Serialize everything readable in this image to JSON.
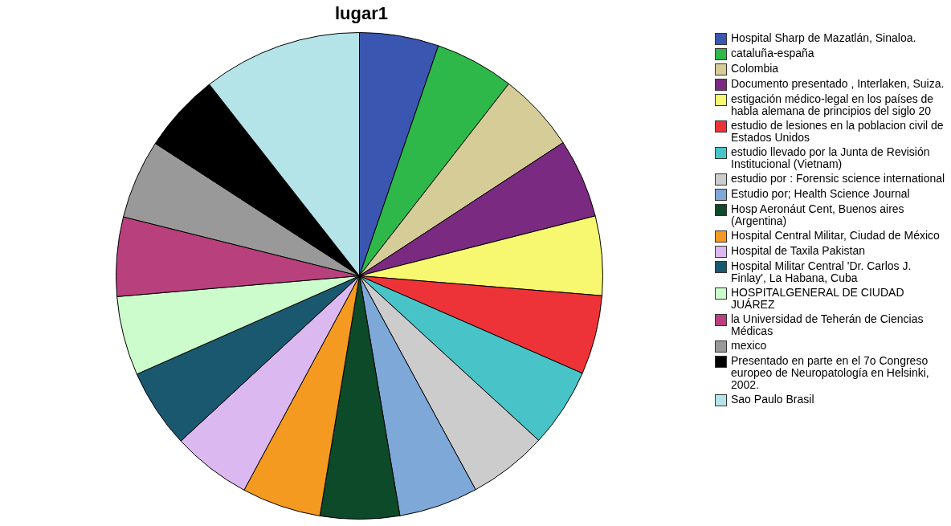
{
  "chart_data": {
    "type": "pie",
    "title": "lugar1",
    "categories": [
      "Hospital Sharp de Mazatlán, Sinaloa.",
      "cataluña-españa",
      "Colombia",
      "Documento presentado , Interlaken, Suiza.",
      "estigación médico-legal en los países de habla alemana de principios del siglo 20",
      "estudio de lesiones en la poblacion civil de Estados Unidos",
      "estudio llevado por la Junta de Revisión Institucional (Vietnam)",
      "estudio por : Forensic science international",
      "Estudio por; Health Science Journal",
      "Hosp Aeronáut Cent, Buenos aires (Argentina)",
      "Hospital Central Militar, Ciudad de México",
      "Hospital de Taxila Pakistan",
      "Hospital Militar Central 'Dr. Carlos J. Finlay', La Habana, Cuba",
      "HOSPITALGENERAL DE CIUDAD JUÁREZ",
      "la Universidad de Teherán de Ciencias Médicas",
      "mexico",
      "Presentado en parte en el 7o Congreso europeo de Neuropatología en Helsinki, 2002.",
      "Sao Paulo Brasil"
    ],
    "values": [
      5.26,
      5.26,
      5.26,
      5.26,
      5.26,
      5.26,
      5.26,
      5.26,
      5.26,
      5.26,
      5.26,
      5.26,
      5.26,
      5.26,
      5.26,
      5.26,
      5.26,
      10.58
    ],
    "colors": [
      "#3a56b0",
      "#2fb84a",
      "#d5cc98",
      "#7a2a80",
      "#f8f870",
      "#ee3338",
      "#48c4c8",
      "#cccccc",
      "#7ea8d8",
      "#0c4a2a",
      "#f49a20",
      "#dcb8f0",
      "#1a5870",
      "#ccfccc",
      "#b8407c",
      "#999999",
      "#000000",
      "#b4e4e8"
    ],
    "legend": "right"
  }
}
